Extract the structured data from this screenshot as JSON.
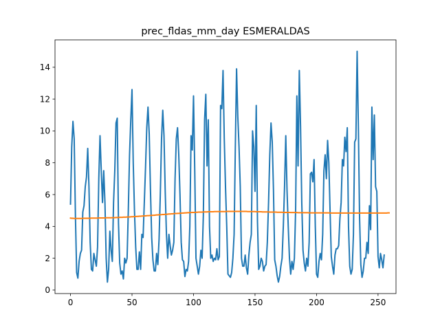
{
  "chart_data": {
    "type": "line",
    "title": "prec_fldas_mm_day ESMERALDAS",
    "xlabel": "",
    "ylabel": "",
    "xlim": [
      -12.6,
      264.6
    ],
    "ylim": [
      -0.22,
      15.72
    ],
    "xticks": [
      0,
      50,
      100,
      150,
      200,
      250
    ],
    "yticks": [
      0,
      2,
      4,
      6,
      8,
      10,
      12,
      14
    ],
    "grid": false,
    "series": [
      {
        "color": "#1f77b4",
        "values": [
          5.4,
          9.0,
          10.6,
          9.5,
          4.7,
          1.1,
          0.75,
          1.8,
          2.3,
          2.5,
          4.9,
          5.3,
          6.5,
          7.1,
          8.9,
          6.5,
          3.0,
          1.3,
          1.2,
          2.3,
          1.9,
          1.5,
          2.7,
          7.0,
          9.7,
          7.5,
          5.5,
          7.5,
          5.5,
          2.0,
          0.5,
          1.3,
          3.7,
          2.5,
          1.8,
          5.5,
          7.5,
          10.5,
          10.8,
          4.2,
          1.7,
          1.0,
          1.2,
          0.7,
          2.0,
          1.7,
          2.0,
          5.0,
          8.5,
          10.7,
          12.6,
          8.0,
          5.0,
          2.7,
          1.3,
          1.3,
          2.4,
          1.3,
          3.5,
          3.3,
          5.5,
          7.7,
          10.2,
          11.5,
          9.8,
          6.3,
          3.3,
          1.9,
          1.2,
          1.2,
          2.3,
          1.6,
          3.2,
          6.0,
          9.5,
          11.3,
          9.7,
          6.2,
          3.5,
          2.0,
          3.5,
          2.8,
          2.2,
          2.5,
          3.0,
          7.0,
          9.5,
          10.2,
          8.5,
          6.0,
          3.0,
          1.9,
          1.8,
          0.85,
          1.3,
          1.2,
          1.8,
          4.0,
          9.7,
          8.8,
          12.2,
          7.5,
          2.0,
          1.5,
          1.0,
          1.5,
          2.5,
          2.0,
          4.7,
          10.7,
          12.3,
          7.8,
          10.7,
          4.0,
          2.0,
          2.2,
          1.8,
          2.0,
          1.9,
          2.6,
          1.9,
          2.1,
          11.6,
          11.4,
          13.8,
          9.5,
          6.5,
          4.0,
          1.0,
          0.9,
          0.8,
          1.1,
          2.0,
          3.5,
          9.0,
          13.9,
          10.9,
          9.0,
          6.5,
          2.0,
          1.5,
          1.5,
          2.2,
          1.4,
          1.0,
          2.2,
          3.0,
          3.5,
          10.0,
          9.0,
          6.2,
          11.6,
          4.3,
          1.3,
          1.5,
          2.0,
          1.8,
          1.2,
          1.5,
          1.6,
          3.0,
          5.5,
          8.5,
          10.5,
          9.3,
          6.3,
          1.9,
          1.5,
          0.9,
          0.5,
          0.85,
          1.5,
          2.0,
          4.0,
          6.5,
          9.7,
          6.3,
          4.0,
          2.0,
          1.0,
          1.8,
          1.3,
          2.0,
          5.0,
          12.2,
          7.8,
          13.8,
          10.3,
          5.5,
          2.5,
          1.7,
          1.2,
          2.0,
          1.5,
          3.0,
          7.3,
          7.4,
          6.8,
          8.2,
          4.0,
          1.0,
          0.8,
          1.8,
          2.3,
          1.9,
          3.5,
          7.5,
          8.5,
          7.0,
          9.4,
          8.0,
          5.0,
          2.1,
          1.5,
          1.0,
          2.2,
          2.6,
          2.6,
          2.8,
          4.5,
          5.5,
          8.2,
          7.8,
          9.6,
          8.7,
          10.2,
          4.0,
          1.5,
          1.0,
          1.3,
          3.5,
          9.3,
          9.5,
          15.0,
          10.3,
          4.5,
          1.6,
          0.8,
          1.2,
          2.0,
          2.0,
          3.0,
          2.3,
          5.3,
          3.8,
          11.5,
          8.2,
          11.0,
          6.5,
          6.2,
          2.1,
          1.4,
          2.3,
          1.9,
          1.4,
          2.2
        ]
      },
      {
        "color": "#ff7f0e",
        "values": [
          4.52,
          4.51,
          4.51,
          4.5,
          4.5,
          4.5,
          4.5,
          4.5,
          4.5,
          4.5,
          4.51,
          4.51,
          4.51,
          4.51,
          4.51,
          4.51,
          4.51,
          4.52,
          4.52,
          4.52,
          4.52,
          4.52,
          4.52,
          4.53,
          4.53,
          4.53,
          4.53,
          4.53,
          4.53,
          4.54,
          4.54,
          4.54,
          4.54,
          4.54,
          4.55,
          4.55,
          4.55,
          4.56,
          4.56,
          4.56,
          4.57,
          4.57,
          4.57,
          4.58,
          4.58,
          4.58,
          4.59,
          4.59,
          4.59,
          4.6,
          4.61,
          4.61,
          4.62,
          4.62,
          4.63,
          4.63,
          4.64,
          4.64,
          4.65,
          4.65,
          4.66,
          4.66,
          4.67,
          4.68,
          4.68,
          4.69,
          4.69,
          4.7,
          4.7,
          4.71,
          4.72,
          4.72,
          4.73,
          4.73,
          4.74,
          4.75,
          4.75,
          4.76,
          4.76,
          4.77,
          4.78,
          4.78,
          4.79,
          4.79,
          4.8,
          4.81,
          4.81,
          4.82,
          4.82,
          4.83,
          4.83,
          4.84,
          4.84,
          4.85,
          4.85,
          4.86,
          4.86,
          4.87,
          4.87,
          4.88,
          4.88,
          4.88,
          4.89,
          4.89,
          4.9,
          4.9,
          4.9,
          4.9,
          4.91,
          4.91,
          4.91,
          4.91,
          4.92,
          4.92,
          4.92,
          4.92,
          4.92,
          4.93,
          4.93,
          4.93,
          4.93,
          4.93,
          4.93,
          4.93,
          4.93,
          4.93,
          4.93,
          4.94,
          4.94,
          4.94,
          4.94,
          4.94,
          4.94,
          4.94,
          4.94,
          4.94,
          4.94,
          4.94,
          4.94,
          4.94,
          4.94,
          4.94,
          4.94,
          4.94,
          4.93,
          4.93,
          4.93,
          4.93,
          4.93,
          4.93,
          4.93,
          4.92,
          4.92,
          4.92,
          4.92,
          4.92,
          4.91,
          4.91,
          4.91,
          4.91,
          4.91,
          4.91,
          4.9,
          4.9,
          4.9,
          4.9,
          4.9,
          4.9,
          4.89,
          4.89,
          4.89,
          4.89,
          4.89,
          4.88,
          4.88,
          4.88,
          4.88,
          4.88,
          4.88,
          4.87,
          4.87,
          4.87,
          4.87,
          4.87,
          4.87,
          4.86,
          4.86,
          4.86,
          4.86,
          4.86,
          4.86,
          4.86,
          4.86,
          4.86,
          4.85,
          4.85,
          4.85,
          4.85,
          4.85,
          4.85,
          4.85,
          4.85,
          4.85,
          4.85,
          4.85,
          4.85,
          4.85,
          4.85,
          4.85,
          4.85,
          4.85,
          4.84,
          4.84,
          4.84,
          4.84,
          4.84,
          4.84,
          4.84,
          4.84,
          4.84,
          4.84,
          4.84,
          4.84,
          4.84,
          4.84,
          4.84,
          4.84,
          4.84,
          4.84,
          4.84,
          4.84,
          4.84,
          4.84,
          4.84,
          4.84,
          4.84,
          4.84,
          4.84,
          4.84,
          4.84,
          4.84,
          4.84,
          4.84,
          4.84,
          4.84,
          4.84,
          4.84,
          4.84,
          4.84,
          4.84,
          4.84,
          4.84,
          4.84,
          4.84,
          4.84,
          4.84,
          4.84,
          4.84,
          4.85,
          4.85
        ]
      }
    ]
  }
}
